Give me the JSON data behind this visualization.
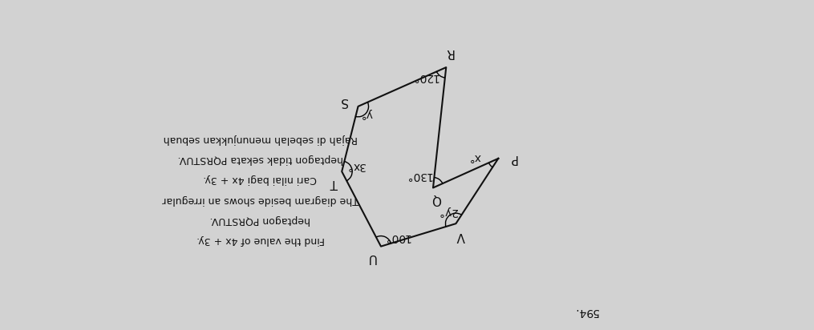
{
  "bg_color": "#d2d2d2",
  "question_number": "594.",
  "vertices_labels": [
    "P",
    "Q",
    "R",
    "S",
    "T",
    "U",
    "V"
  ],
  "angle_labels": [
    "x°",
    "130°",
    "120°",
    "y°",
    "3x°",
    "100°",
    "2y°"
  ],
  "malay_line1": "Rajah di sebelah menunjukkan sebuah",
  "malay_line2": "heptagon tidak sekata PQRSTUV.",
  "malay_line3": "Cari nilai bagi 4x + 3y.",
  "english_line1": "The diagram beside shows an irregular",
  "english_line2": "heptagon PQRSTUV.",
  "english_line3": "Find the value of 4x + 3y.",
  "polygon_color": "#111111",
  "text_color": "#111111",
  "font_size_vertex": 11,
  "font_size_angle": 10,
  "font_size_text": 9,
  "font_size_number": 10,
  "rotation": 180,
  "P": [
    9.8,
    5.2
  ],
  "Q": [
    7.8,
    4.3
  ],
  "R": [
    8.2,
    8.0
  ],
  "S": [
    5.5,
    6.8
  ],
  "T": [
    5.0,
    4.8
  ],
  "U": [
    6.2,
    2.5
  ],
  "V": [
    8.5,
    3.2
  ],
  "xlim": [
    0,
    14
  ],
  "ylim": [
    0,
    10
  ]
}
